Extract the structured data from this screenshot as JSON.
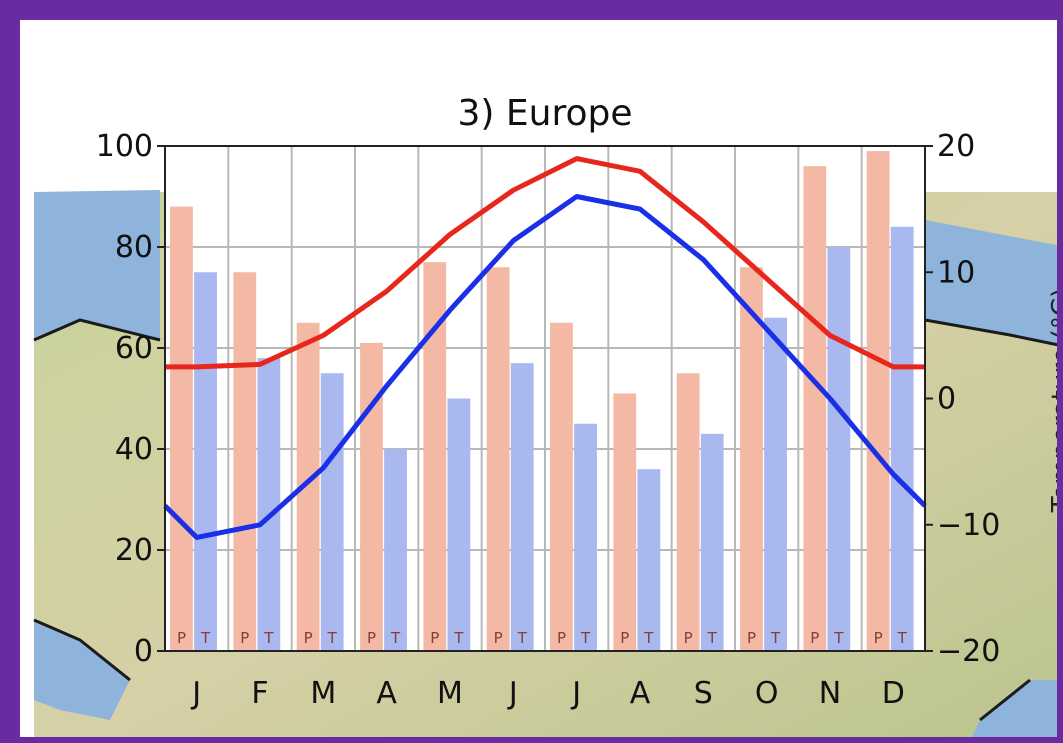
{
  "chart_data": {
    "type": "bar",
    "title": "3) Europe",
    "categories": [
      "J",
      "F",
      "M",
      "A",
      "M",
      "J",
      "J",
      "A",
      "S",
      "O",
      "N",
      "D"
    ],
    "bar_labels": [
      "P",
      "T"
    ],
    "series": [
      {
        "kind": "bar",
        "axis": "left",
        "color": "#f3b9a4",
        "values": [
          88,
          75,
          65,
          61,
          77,
          76,
          65,
          51,
          55,
          76,
          96,
          99
        ]
      },
      {
        "kind": "bar",
        "axis": "left",
        "color": "#a9b8ee",
        "values": [
          75,
          58,
          55,
          40,
          50,
          57,
          45,
          36,
          43,
          66,
          80,
          84
        ]
      },
      {
        "kind": "line",
        "axis": "right",
        "color": "#e8261c",
        "values": [
          2.5,
          2.7,
          5,
          8.5,
          13,
          16.5,
          19,
          18,
          14,
          9.5,
          5,
          2.5
        ]
      },
      {
        "kind": "line",
        "axis": "right",
        "color": "#1a2fe6",
        "values": [
          -11,
          -10,
          -5.5,
          1,
          7,
          12.5,
          16,
          15,
          11,
          5.5,
          0,
          -6
        ]
      }
    ],
    "y_left": {
      "lim": [
        0,
        100
      ],
      "ticks": [
        "0",
        "20",
        "40",
        "60",
        "80",
        "100"
      ]
    },
    "y_right": {
      "lim": [
        -20,
        20
      ],
      "ticks": [
        "−20",
        "−10",
        "0",
        "10",
        "20"
      ],
      "label": "Temperature (°C)"
    },
    "grid": true
  }
}
